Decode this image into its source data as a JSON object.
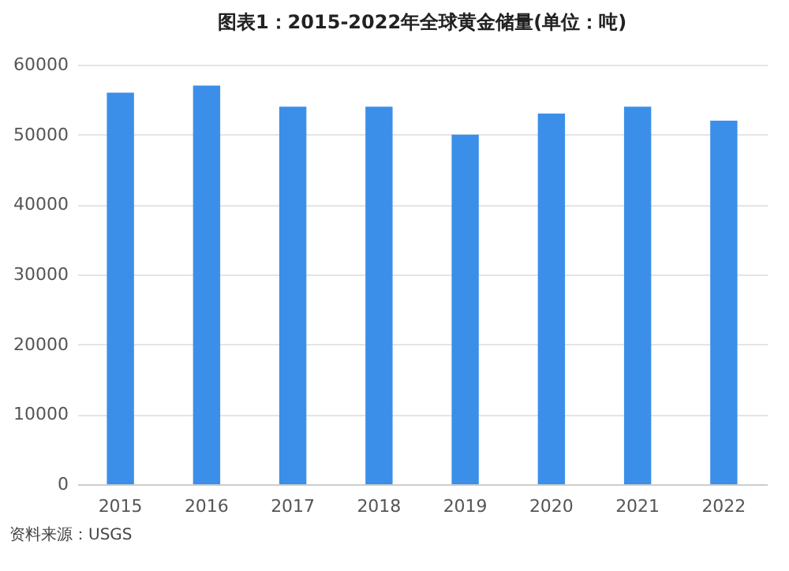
{
  "chart_data": {
    "type": "bar",
    "title": "图表1：2015-2022年全球黄金储量(单位：吨)",
    "categories": [
      "2015",
      "2016",
      "2017",
      "2018",
      "2019",
      "2020",
      "2021",
      "2022"
    ],
    "values": [
      56000,
      57000,
      54000,
      54000,
      50000,
      53000,
      54000,
      52000
    ],
    "color": "#3b8fe8",
    "ylim": [
      0,
      60000
    ],
    "yticks": [
      0,
      10000,
      20000,
      30000,
      40000,
      50000,
      60000
    ],
    "grid": "y",
    "annotations": [
      "资料来源：USGS"
    ]
  }
}
